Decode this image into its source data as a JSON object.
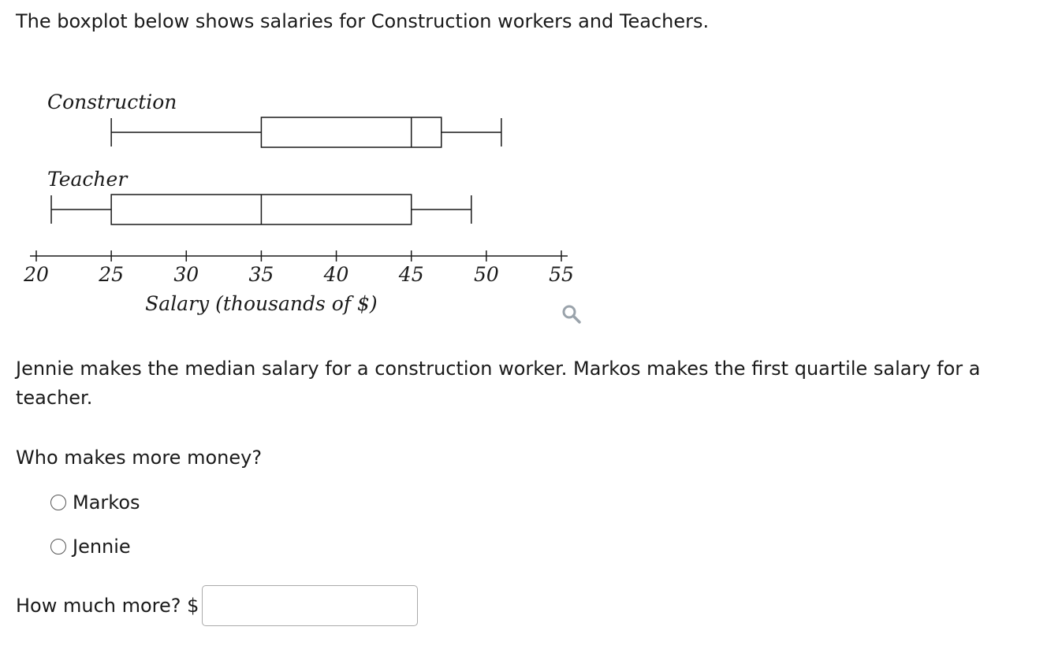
{
  "intro": "The boxplot below shows salaries for Construction workers and Teachers.",
  "chart_data": {
    "type": "boxplot",
    "xlabel": "Salary (thousands of $)",
    "ticks": [
      20,
      25,
      30,
      35,
      40,
      45,
      50,
      55
    ],
    "xlim": [
      20,
      55
    ],
    "series": [
      {
        "name": "Construction",
        "min": 25,
        "q1": 35,
        "median": 45,
        "q3": 47,
        "max": 51
      },
      {
        "name": "Teacher",
        "min": 21,
        "q1": 25,
        "median": 35,
        "q3": 45,
        "max": 49
      }
    ]
  },
  "zoom_icon": "magnifier-icon",
  "prompt": "Jennie makes the median salary for a construction worker. Markos makes the first quartile salary for a teacher.",
  "question": "Who makes more money?",
  "choices": [
    "Markos",
    "Jennie"
  ],
  "amount_label": "How much more? $",
  "amount_value": ""
}
